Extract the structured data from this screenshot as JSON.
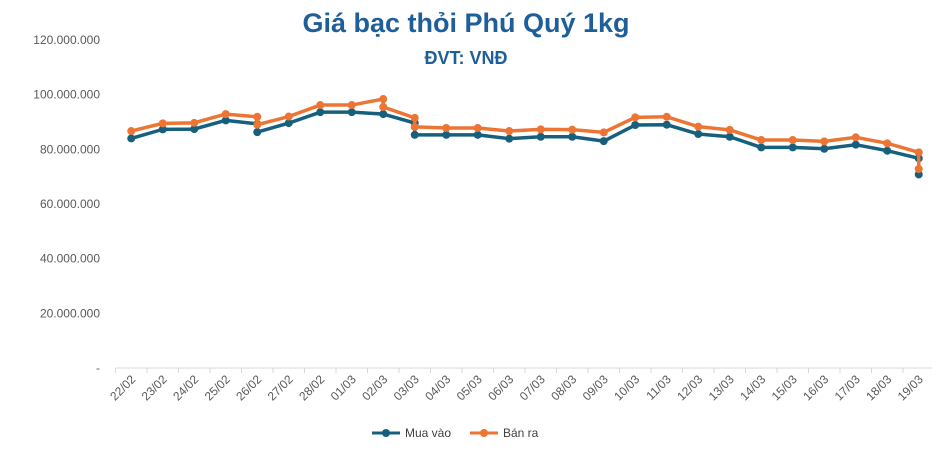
{
  "chart_data": {
    "type": "line",
    "title": "Giá bạc thỏi Phú Quý 1kg",
    "subtitle": "ĐVT: VNĐ",
    "xlabel": "",
    "ylabel": "",
    "ylim": [
      0,
      120000000
    ],
    "yticks": [
      0,
      20000000,
      40000000,
      60000000,
      80000000,
      100000000,
      120000000
    ],
    "ytick_labels": [
      "-",
      "20.000.000",
      "40.000.000",
      "60.000.000",
      "80.000.000",
      "100.000.000",
      "120.000.000"
    ],
    "grid": false,
    "legend_position": "bottom",
    "categories": [
      "22/02",
      "23/02",
      "24/02",
      "25/02",
      "26/02",
      "27/02",
      "28/02",
      "01/03",
      "02/03",
      "03/03",
      "04/03",
      "05/03",
      "06/03",
      "07/03",
      "08/03",
      "09/03",
      "10/03",
      "11/03",
      "12/03",
      "13/03",
      "14/03",
      "15/03",
      "16/03",
      "17/03",
      "18/03",
      "19/03"
    ],
    "series": [
      {
        "name": "Mua vào",
        "color": "#17607d",
        "values": [
          84000000,
          87300000,
          87400000,
          90600000,
          [
            89300000,
            86300000
          ],
          89600000,
          93600000,
          93600000,
          92900000,
          [
            89600000,
            85300000
          ],
          85300000,
          85300000,
          83900000,
          84600000,
          84600000,
          83000000,
          88900000,
          89000000,
          85600000,
          84600000,
          80700000,
          80700000,
          80200000,
          81700000,
          79500000,
          [
            76700000,
            70800000
          ]
        ]
      },
      {
        "name": "Bán ra",
        "color": "#ed7534",
        "values": [
          86700000,
          89500000,
          89700000,
          92900000,
          [
            91900000,
            89000000
          ],
          92000000,
          96200000,
          96200000,
          [
            98400000,
            95500000
          ],
          [
            91500000,
            88200000
          ],
          87800000,
          87800000,
          86700000,
          87300000,
          87200000,
          86200000,
          91700000,
          91900000,
          88300000,
          87100000,
          83400000,
          83400000,
          82900000,
          84400000,
          82200000,
          [
            78900000,
            72800000
          ]
        ]
      }
    ]
  }
}
